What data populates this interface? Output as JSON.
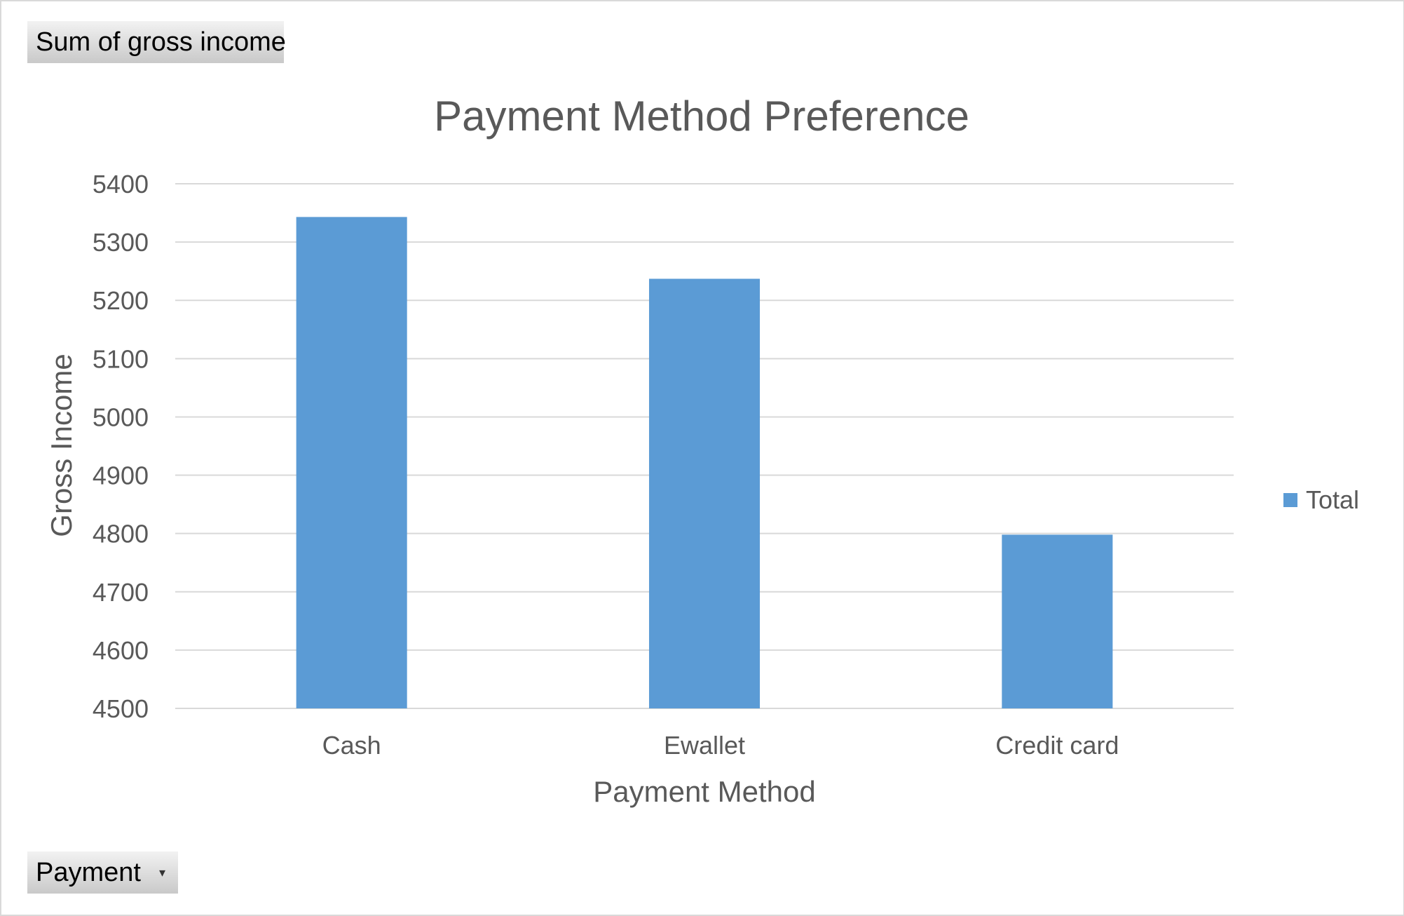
{
  "pivot": {
    "value_field_label": "Sum of gross income",
    "axis_field_label": "Payment",
    "axis_field_dropdown_icon": "chevron-down-icon"
  },
  "chart_data": {
    "type": "bar",
    "title": "Payment Method Preference",
    "xlabel": "Payment Method",
    "ylabel": "Gross Income",
    "categories": [
      "Cash",
      "Ewallet",
      "Credit card"
    ],
    "series": [
      {
        "name": "Total",
        "values": [
          5343,
          5237,
          4798
        ],
        "color": "#5b9bd5"
      }
    ],
    "ylim": [
      4500,
      5400
    ],
    "yticks": [
      4500,
      4600,
      4700,
      4800,
      4900,
      5000,
      5100,
      5200,
      5300,
      5400
    ],
    "ytick_labels": [
      "4500",
      "4600",
      "4700",
      "4800",
      "4900",
      "5000",
      "5100",
      "5200",
      "5300",
      "5400"
    ],
    "grid": true,
    "legend_position": "right",
    "gridline_color": "#d9d9d9"
  }
}
